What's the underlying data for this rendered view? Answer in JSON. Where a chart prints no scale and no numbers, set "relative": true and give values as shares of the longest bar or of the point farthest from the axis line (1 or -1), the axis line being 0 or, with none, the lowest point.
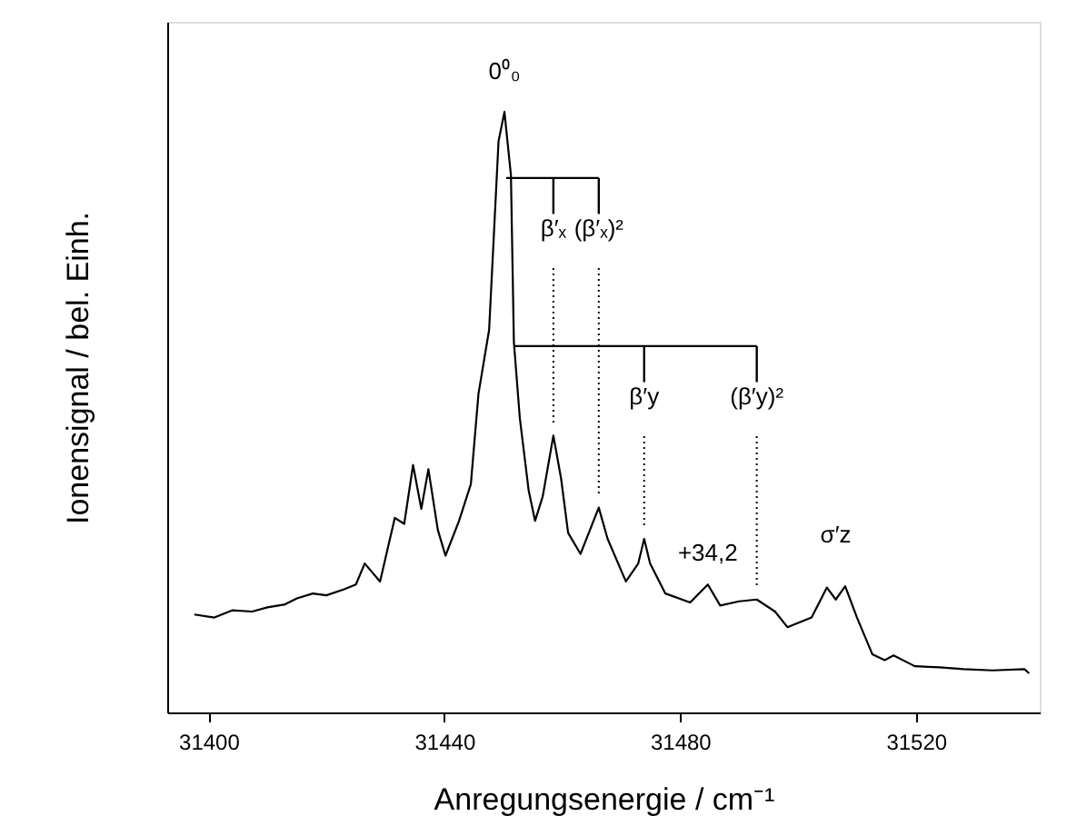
{
  "chart_data": {
    "type": "line",
    "relative": true,
    "xlabel": "Anregungsenergie / cm⁻¹",
    "ylabel": "Ionensignal / bel. Einh.",
    "series": [
      {
        "color": "#000000",
        "x": [
          31397.6,
          31401,
          31404,
          31407.4,
          31410,
          31413,
          31415,
          31417.7,
          31420,
          31423,
          31425,
          31426.5,
          31429.1,
          31431.6,
          31433.2,
          31434.7,
          31436.1,
          31437.3,
          31438.9,
          31440.2,
          31442.5,
          31444.5,
          31445.8,
          31447.6,
          31449.2,
          31450.2,
          31451.3,
          31451.8,
          31452.8,
          31454.3,
          31455.4,
          31456.7,
          31458.5,
          31459.8,
          31461.0,
          31463.1,
          31466.2,
          31467.7,
          31470.8,
          31472.9,
          31473.9,
          31474.9,
          31477.5,
          31481.7,
          31484.7,
          31486.8,
          31490,
          31493.0,
          31496.1,
          31498.2,
          31502.3,
          31504.9,
          31506.4,
          31508.0,
          31510.0,
          31512.6,
          31514.7,
          31516.2,
          31519.8,
          31524,
          31528.1,
          31533,
          31538.4,
          31539.2
        ],
        "values": [
          0.163,
          0.158,
          0.17,
          0.168,
          0.175,
          0.18,
          0.19,
          0.198,
          0.195,
          0.205,
          0.213,
          0.248,
          0.218,
          0.324,
          0.314,
          0.412,
          0.339,
          0.405,
          0.304,
          0.261,
          0.319,
          0.38,
          0.531,
          0.637,
          0.951,
          1.0,
          0.895,
          0.617,
          0.491,
          0.37,
          0.319,
          0.36,
          0.461,
          0.39,
          0.299,
          0.264,
          0.341,
          0.289,
          0.218,
          0.248,
          0.289,
          0.248,
          0.198,
          0.183,
          0.213,
          0.178,
          0.185,
          0.188,
          0.168,
          0.142,
          0.158,
          0.208,
          0.188,
          0.21,
          0.158,
          0.097,
          0.087,
          0.095,
          0.077,
          0.075,
          0.072,
          0.07,
          0.072,
          0.065
        ]
      }
    ],
    "xlim": [
      31393,
      31541
    ],
    "xticks": [
      31400,
      31440,
      31480,
      31520
    ],
    "annotations": [
      {
        "text": "0⁰₀",
        "x": 31450.2,
        "y": 1.0
      },
      {
        "text": "β′ₓ",
        "x": 31458.5,
        "y": 0.461
      },
      {
        "text": "(β′ₓ)²",
        "x": 31466.2,
        "y": 0.341
      },
      {
        "text": "β′y",
        "x": 31473.9,
        "y": 0.289
      },
      {
        "text": "(β′y)²",
        "x": 31493.0,
        "y": 0.188
      },
      {
        "text": "+34,2",
        "x": 31484.7,
        "y": 0.213
      },
      {
        "text": "σ′z",
        "x": 31506.4,
        "y": 0.21
      }
    ],
    "grid": false,
    "marker": "none",
    "line_style": "solid"
  }
}
